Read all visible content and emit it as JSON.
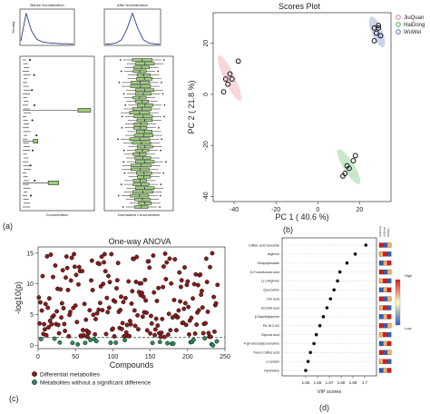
{
  "panel_labels": {
    "a": "(a)",
    "b": "(b)",
    "c": "(c)",
    "d": "(d)"
  },
  "colors": {
    "jiuquan": "#e57c8a",
    "haidong": "#4caf50",
    "wuwei": "#5b6fbf",
    "box_fill": "#9ccf7a",
    "density_line": "#2b3f8a",
    "diff_point": "#8b1a1a",
    "nondiff_point": "#2e8b57",
    "vip_dot": "#111111"
  },
  "chart_data": [
    {
      "type": "line",
      "panel": "a-top-left",
      "title": "Before Normalization",
      "ylabel": "Density",
      "xlabel": "",
      "x": [
        0,
        1,
        2,
        3,
        4,
        5,
        6,
        7,
        8,
        9,
        10
      ],
      "values": [
        0.1,
        0.9,
        0.4,
        0.15,
        0.08,
        0.05,
        0.04,
        0.03,
        0.02,
        0.02,
        0.01
      ]
    },
    {
      "type": "line",
      "panel": "a-top-right",
      "title": "After Normalization",
      "ylabel": "",
      "xlabel": "",
      "x": [
        -5,
        -4,
        -3,
        -2,
        -1,
        0,
        1,
        2,
        3,
        4,
        5
      ],
      "values": [
        0.01,
        0.02,
        0.05,
        0.15,
        0.5,
        1.0,
        0.5,
        0.15,
        0.05,
        0.02,
        0.01
      ]
    },
    {
      "type": "box",
      "panel": "a-bottom-left",
      "xlabel": "Concentration",
      "note": "raw concentrations, mostly compressed near zero with outliers",
      "highlight_boxes": [
        {
          "row": 0.35,
          "low": 0.78,
          "high": 0.95
        },
        {
          "row": 0.55,
          "low": 0.18,
          "high": 0.24
        },
        {
          "row": 0.82,
          "low": 0.38,
          "high": 0.52
        }
      ]
    },
    {
      "type": "box",
      "panel": "a-bottom-right",
      "xlabel": "Normalized Concentration",
      "rows": 40
    },
    {
      "type": "scatter",
      "panel": "b",
      "title": "Scores Plot",
      "xlabel": "PC 1 ( 40.6 %)",
      "ylabel": "PC 2 ( 21.8 %)",
      "xlim": [
        -50,
        35
      ],
      "ylim": [
        -42,
        32
      ],
      "xticks": [
        -40,
        -20,
        0,
        20
      ],
      "yticks": [
        -40,
        -20,
        0,
        20
      ],
      "legend_position": "top-right",
      "series": [
        {
          "name": "JiuQuan",
          "points": [
            [
              -45,
              1
            ],
            [
              -43,
              4
            ],
            [
              -41,
              6
            ],
            [
              -42,
              8
            ],
            [
              -38,
              13
            ],
            [
              -44,
              6
            ]
          ]
        },
        {
          "name": "HaiDong",
          "points": [
            [
              13,
              -31
            ],
            [
              15,
              -29
            ],
            [
              17,
              -26
            ],
            [
              18,
              -24
            ],
            [
              12,
              -32
            ],
            [
              14,
              -28
            ]
          ]
        },
        {
          "name": "WuWei",
          "points": [
            [
              27,
              21
            ],
            [
              28,
              24
            ],
            [
              29,
              27
            ],
            [
              30,
              23
            ],
            [
              29,
              26
            ],
            [
              27,
              26
            ]
          ]
        }
      ]
    },
    {
      "type": "scatter",
      "panel": "c",
      "title": "One-way ANOVA",
      "xlabel": "Compounds",
      "ylabel": "-log10(p)",
      "xlim": [
        0,
        250
      ],
      "ylim": [
        -0.5,
        16
      ],
      "xticks": [
        0,
        50,
        100,
        150,
        200,
        250
      ],
      "yticks": [
        0,
        5,
        10,
        15
      ],
      "threshold": 1.3,
      "legend": [
        "Differential metabolites",
        "Metabolites without a significant difference"
      ],
      "legend_position": "bottom"
    },
    {
      "type": "dot",
      "panel": "d",
      "xlabel": "VIP scores",
      "xlim": [
        1.63,
        1.71
      ],
      "xticks": [
        1.65,
        1.66,
        1.67,
        1.68,
        1.69,
        1.7
      ],
      "categories": [
        "Caffeic acid hexoside",
        "Arginine",
        "Sinapoylmalate",
        "D-Fructofuranic acid",
        "L(-)-Arginine",
        "Quercetine",
        "Uric acid",
        "Aconitic acid",
        "β-Naphthylamine",
        "PA 18:2-4O",
        "Glycolic acid",
        "4-(β-Glucosyl)coumarine",
        "Trans-Caffeic acid",
        "ε-Lactam",
        "Pyrimidine"
      ],
      "values": [
        1.701,
        1.692,
        1.685,
        1.679,
        1.677,
        1.674,
        1.671,
        1.668,
        1.665,
        1.662,
        1.659,
        1.657,
        1.654,
        1.652,
        1.65
      ],
      "colorbar": {
        "high": "High",
        "low": "Low"
      },
      "heat_columns": [
        "HaiDong",
        "JiuQuan",
        "WuWei"
      ]
    }
  ]
}
